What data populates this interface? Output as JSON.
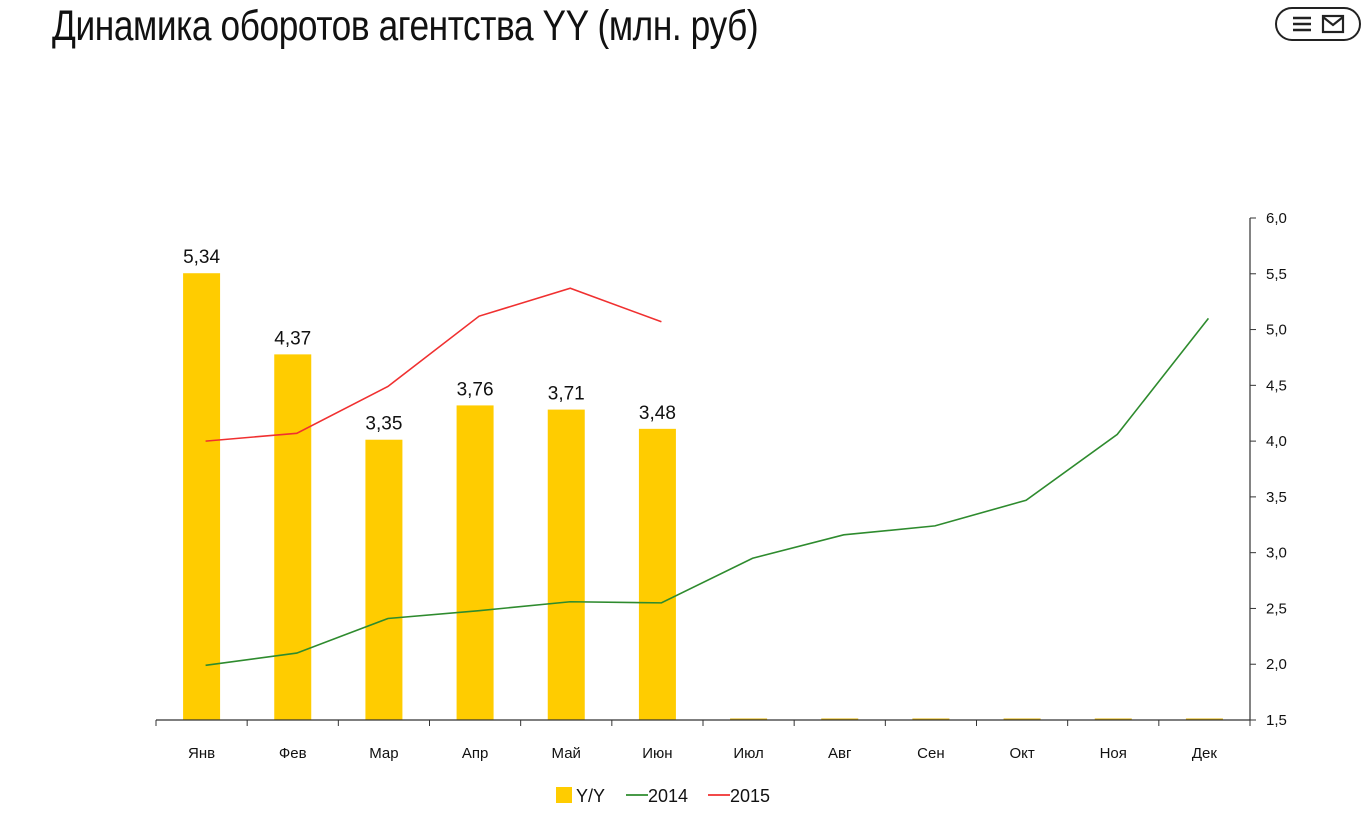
{
  "header": {
    "title": "Динамика оборотов агентства YY (млн. руб)",
    "menu_icons": [
      "hamburger-icon",
      "envelope-icon"
    ]
  },
  "colors": {
    "bar": "#FFCC00",
    "line_2014": "#2E8B2E",
    "line_2015": "#F03030",
    "axis": "#333333"
  },
  "chart_data": {
    "type": "bar",
    "categories": [
      "Янв",
      "Фев",
      "Мар",
      "Апр",
      "Май",
      "Июн",
      "Июл",
      "Авг",
      "Сен",
      "Окт",
      "Ноя",
      "Дек"
    ],
    "bar_series": {
      "name": "Y/Y",
      "values": [
        5.34,
        4.37,
        3.35,
        3.76,
        3.71,
        3.48,
        0,
        0,
        0,
        0,
        0,
        0
      ],
      "labels": [
        "5,34",
        "4,37",
        "3,35",
        "3,76",
        "3,71",
        "3,48",
        "",
        "",
        "",
        "",
        "",
        ""
      ]
    },
    "line_series": [
      {
        "name": "2014",
        "values": [
          1.99,
          2.1,
          2.41,
          2.48,
          2.56,
          2.55,
          2.95,
          3.16,
          3.24,
          3.47,
          4.06,
          5.1
        ]
      },
      {
        "name": "2015",
        "values": [
          4.0,
          4.07,
          4.49,
          5.12,
          5.37,
          5.07
        ]
      }
    ],
    "y_right": {
      "min": 1.5,
      "max": 6.0,
      "ticks": [
        1.5,
        2.0,
        2.5,
        3.0,
        3.5,
        4.0,
        4.5,
        5.0,
        5.5,
        6.0
      ],
      "tick_labels": [
        "1,5",
        "2,0",
        "2,5",
        "3,0",
        "3,5",
        "4,0",
        "4,5",
        "5,0",
        "5,5",
        "6,0"
      ]
    },
    "y_left": {
      "min": 0,
      "max": 6.0
    },
    "legend": {
      "position": "bottom",
      "items": [
        {
          "label": "Y/Y",
          "kind": "bar"
        },
        {
          "label": "2014",
          "kind": "line_2014"
        },
        {
          "label": "2015",
          "kind": "line_2015"
        }
      ]
    },
    "grid": false
  }
}
